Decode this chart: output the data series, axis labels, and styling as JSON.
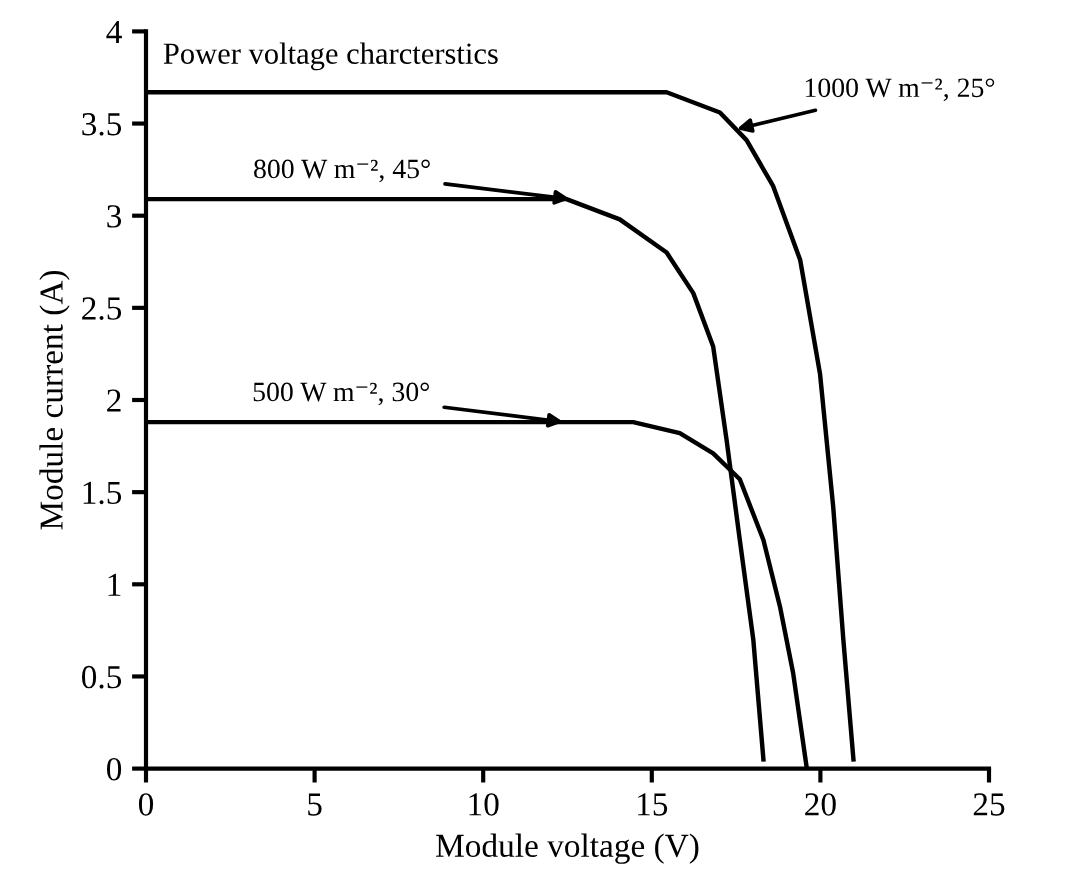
{
  "chart_data": {
    "type": "line",
    "title": "Power voltage charcterstics",
    "xlabel": "Module voltage (V)",
    "ylabel": "Module current (A)",
    "xlim": [
      0,
      25
    ],
    "ylim": [
      0,
      4
    ],
    "xticks": [
      0,
      5,
      10,
      15,
      20,
      25
    ],
    "yticks": [
      0,
      {
        "value": 0.5,
        "label": "0.5"
      },
      1,
      {
        "value": 1.5,
        "label": "1.5"
      },
      2,
      {
        "value": 2.5,
        "label": "2.5"
      },
      3,
      {
        "value": 3.5,
        "label": "3.5"
      },
      4
    ],
    "grid": false,
    "legend": false,
    "marker": "none",
    "line_style": "solid",
    "series": [
      {
        "color": "#000000",
        "x": [
          0,
          15.44,
          17.02,
          17.81,
          18.6,
          19.4,
          19.99,
          20.38,
          20.68,
          20.98
        ],
        "values": [
          3.67,
          3.67,
          3.56,
          3.41,
          3.16,
          2.76,
          2.14,
          1.42,
          0.7,
          0.05
        ]
      },
      {
        "color": "#000000",
        "x": [
          0,
          12.47,
          14.05,
          15.44,
          16.23,
          16.82,
          17.22,
          17.61,
          18.01,
          18.31
        ],
        "values": [
          3.09,
          3.09,
          2.98,
          2.8,
          2.58,
          2.29,
          1.78,
          1.24,
          0.7,
          0.05
        ]
      },
      {
        "color": "#000000",
        "x": [
          0,
          14.45,
          15.83,
          16.82,
          17.61,
          18.31,
          18.8,
          19.19,
          19.59
        ],
        "values": [
          1.88,
          1.88,
          1.82,
          1.71,
          1.57,
          1.24,
          0.88,
          0.52,
          0.01
        ]
      }
    ],
    "annotations": [
      {
        "text": "1000 W m⁻², 25°",
        "x": 17.52,
        "y": 3.47
      },
      {
        "text": "800 W m⁻², 45°",
        "x": 12.57,
        "y": 3.09
      },
      {
        "text": "500 W m⁻², 30°",
        "x": 12.38,
        "y": 1.88
      }
    ]
  }
}
